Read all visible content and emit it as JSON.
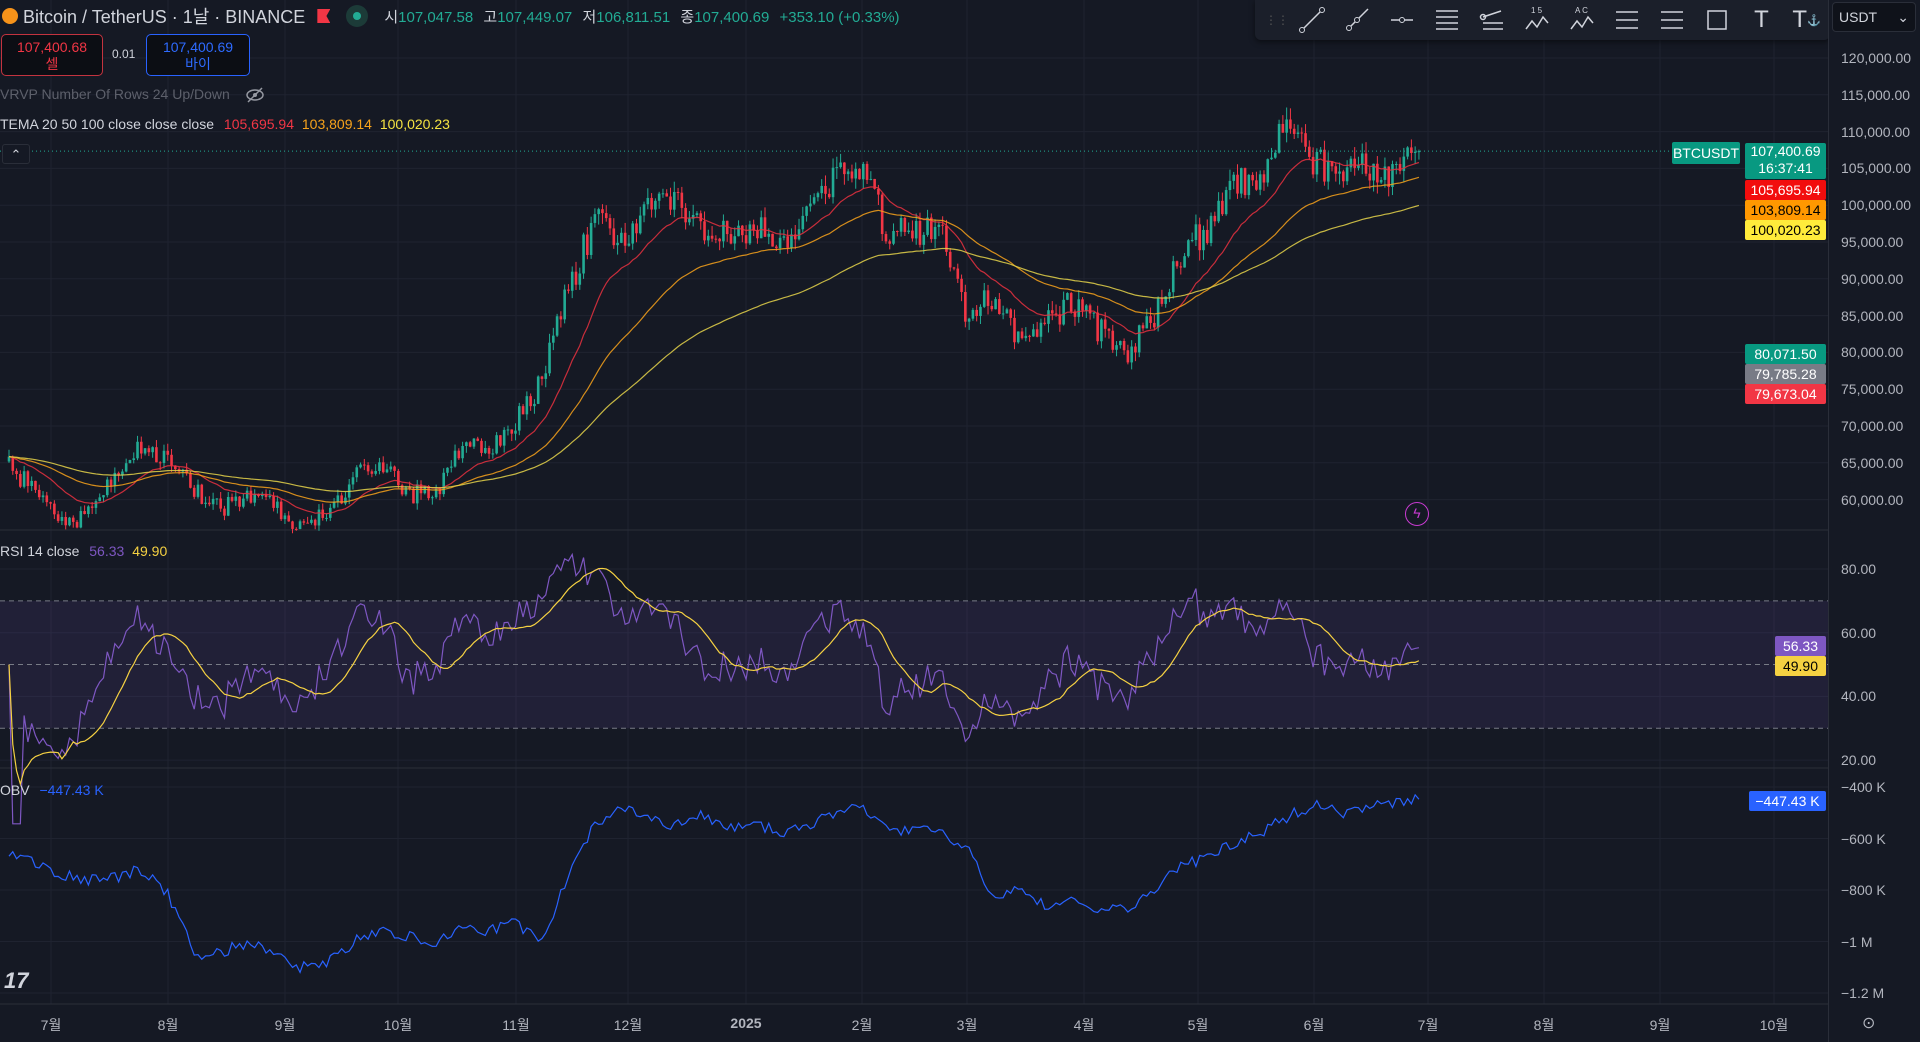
{
  "header": {
    "symbol": "Bitcoin / TetherUS · 1날 · BINANCE",
    "o_label": "시",
    "open": "107,047.58",
    "h_label": "고",
    "high": "107,449.07",
    "l_label": "저",
    "low": "106,811.51",
    "c_label": "종",
    "close": "107,400.69",
    "change": "+353.10 (+0.33%)"
  },
  "trade": {
    "sell_price": "107,400.68",
    "sell_label": "셀",
    "spread": "0.01",
    "buy_price": "107,400.69",
    "buy_label": "바이"
  },
  "indicators": {
    "vrvp": "VRVP Number Of Rows 24 Up/Down",
    "tema_label": "TEMA 20 50 100 close close close",
    "tema20": "105,695.94",
    "tema50": "103,809.14",
    "tema100": "100,020.23",
    "rsi_label": "RSI 14 close",
    "rsi": "56.33",
    "rsi_ma": "49.90",
    "obv_label": "OBV",
    "obv": "−447.43 K"
  },
  "currency": "USDT",
  "tags": {
    "symbol": "BTCUSDT",
    "price": "107,400.69",
    "countdown": "16:37:41",
    "tema20": "105,695.94",
    "tema50": "103,809.14",
    "tema100": "100,020.23",
    "vp1": "80,071.50",
    "vp2": "79,785.28",
    "vp3": "79,673.04",
    "rsi": "56.33",
    "rsi_ma": "49.90",
    "obv": "−447.43 K"
  },
  "colors": {
    "up": "#22ab94",
    "down": "#f23645",
    "tema20": "#e8313f",
    "tema50": "#f7a21b",
    "tema100": "#e5d34a",
    "rsi": "#7e57c2",
    "rsi_ma": "#f5d142",
    "obv": "#2962ff"
  },
  "price_axis": [
    "120,000.00",
    "115,000.00",
    "110,000.00",
    "105,000.00",
    "100,000.00",
    "95,000.00",
    "90,000.00",
    "85,000.00",
    "80,000.00",
    "75,000.00",
    "70,000.00",
    "65,000.00",
    "60,000.00"
  ],
  "rsi_axis": [
    "80.00",
    "60.00",
    "40.00",
    "20.00"
  ],
  "obv_axis": [
    "−400 K",
    "−600 K",
    "−800 K",
    "−1 M",
    "−1.2 M"
  ],
  "months": [
    "7월",
    "8월",
    "9월",
    "10월",
    "11월",
    "12월",
    "2025",
    "2월",
    "3월",
    "4월",
    "5월",
    "6월",
    "7월",
    "8월",
    "9월",
    "10월"
  ],
  "chart_data": {
    "type": "candlestick",
    "interval": "1D",
    "ylim": [
      55000,
      122000
    ],
    "weekly_close": [
      64500,
      61000,
      57000,
      58000,
      64000,
      67000,
      65000,
      61000,
      58500,
      61000,
      59000,
      56500,
      58000,
      63000,
      65500,
      61000,
      60500,
      67500,
      67000,
      70500,
      76000,
      88000,
      98000,
      96000,
      99000,
      100500,
      97500,
      95500,
      97000,
      94500,
      100000,
      104000,
      104500,
      97000,
      96500,
      97000,
      84500,
      88000,
      81000,
      84000,
      87000,
      83000,
      80000,
      84500,
      93500,
      96500,
      103000,
      103500,
      111000,
      106000,
      104500,
      106000,
      104500,
      107400.69
    ],
    "obv_weekly_k": [
      -660,
      -700,
      -740,
      -760,
      -750,
      -720,
      -820,
      -1050,
      -1040,
      -1000,
      -1060,
      -1100,
      -1080,
      -1000,
      -950,
      -980,
      -1000,
      -950,
      -960,
      -930,
      -1000,
      -760,
      -540,
      -480,
      -520,
      -550,
      -500,
      -560,
      -540,
      -580,
      -560,
      -500,
      -480,
      -560,
      -570,
      -580,
      -640,
      -820,
      -800,
      -860,
      -840,
      -880,
      -870,
      -820,
      -700,
      -680,
      -620,
      -580,
      -520,
      -470,
      -500,
      -480,
      -470,
      -447.43
    ],
    "rsi_bands": [
      70,
      50,
      30
    ]
  }
}
